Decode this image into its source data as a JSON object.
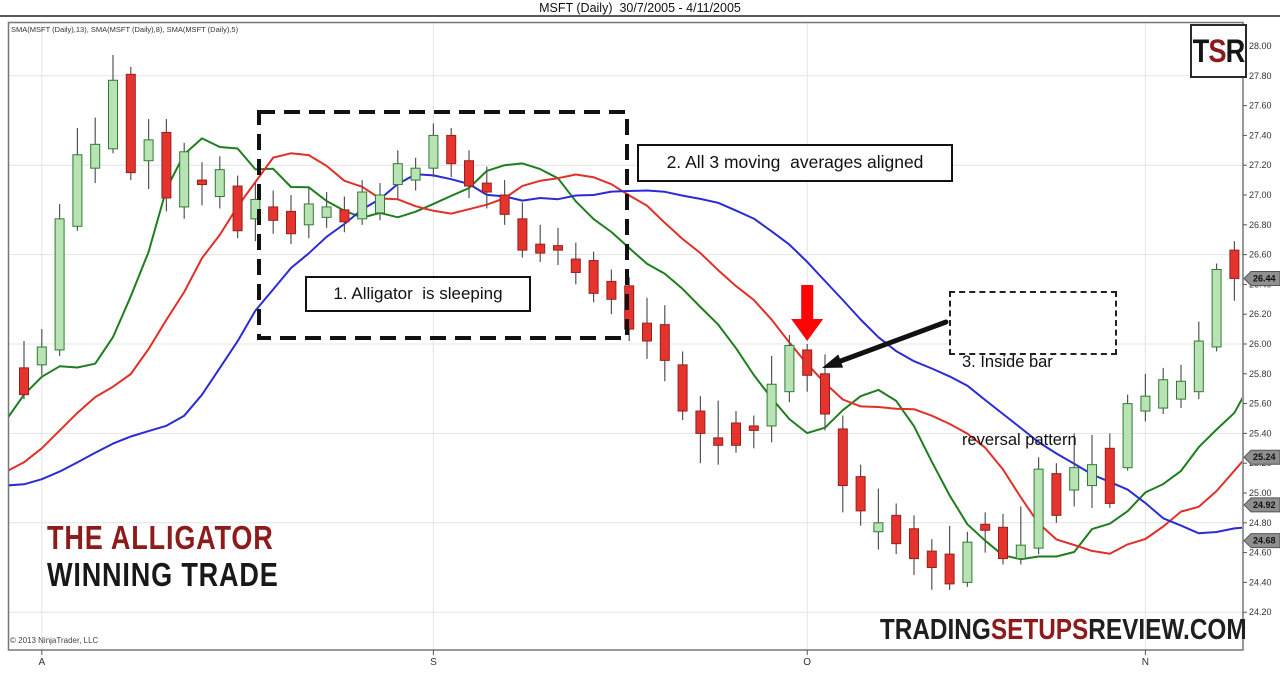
{
  "title": "MSFT (Daily)  30/7/2005 - 4/11/2005",
  "indicator_label": "SMA(MSFT (Daily),13), SMA(MSFT (Daily),8), SMA(MSFT (Daily),5)",
  "copyright": "© 2013 NinjaTrader, LLC",
  "branding": {
    "line1": "THE ALLIGATOR",
    "line2": "WINNING TRADE"
  },
  "watermark": {
    "part1": "TRADING",
    "part2": "SETUPS",
    "part3": "REVIEW.COM"
  },
  "logo": {
    "t": "T",
    "s": "S",
    "r": "R"
  },
  "annotations": {
    "sleeping": "1. Alligator  is sleeping",
    "aligned": "2. All 3 moving  averages aligned",
    "inside_line1": "3. Inside bar",
    "inside_line2": "reversal pattern"
  },
  "price_tags": [
    {
      "label": "26.44",
      "price": 26.44
    },
    {
      "label": "25.24",
      "price": 25.24
    },
    {
      "label": "24.92",
      "price": 24.92
    },
    {
      "label": "24.68",
      "price": 24.68
    }
  ],
  "colors": {
    "up_fill": "#b9e3b4",
    "up_border": "#2e7d32",
    "down_fill": "#e5342e",
    "down_border": "#99201c",
    "wick": "#555555",
    "sma5": "#1e7e1e",
    "sma8": "#e03028",
    "sma13": "#2b2bd6",
    "grid": "#e4e4e4",
    "frame": "#777777",
    "axis_text": "#333333",
    "tag_bg": "#8f8f8f",
    "tag_border": "#555555",
    "tag_text": "#111111",
    "arrow_red": "#fb0505",
    "arrow_black": "#111111",
    "accent_red": "#8e1b1b"
  },
  "chart_data": {
    "type": "candlestick",
    "symbol": "MSFT",
    "timeframe": "Daily",
    "date_range": "30/7/2005 - 4/11/2005",
    "title": "MSFT (Daily)  30/7/2005 - 4/11/2005",
    "ylim": [
      23.95,
      28.16
    ],
    "grid": true,
    "y_axis_ticks": [
      "28.00",
      "27.80",
      "27.60",
      "27.40",
      "27.20",
      "27.00",
      "26.80",
      "26.60",
      "26.40",
      "26.20",
      "26.00",
      "25.80",
      "25.60",
      "25.40",
      "25.20",
      "25.00",
      "24.80",
      "24.60",
      "24.40",
      "24.20"
    ],
    "x_axis_ticks": [
      {
        "label": "A",
        "index": 1
      },
      {
        "label": "S",
        "index": 23
      },
      {
        "label": "O",
        "index": 44
      },
      {
        "label": "N",
        "index": 63
      }
    ],
    "last_price": 26.44,
    "inside_bar_index": 44,
    "sleeping_box_bar_range": [
      13,
      33
    ],
    "candles_ohlc": [
      [
        25.84,
        26.02,
        25.63,
        25.66
      ],
      [
        25.86,
        26.1,
        25.79,
        25.98
      ],
      [
        25.96,
        26.94,
        25.92,
        26.84
      ],
      [
        26.79,
        27.45,
        26.76,
        27.27
      ],
      [
        27.18,
        27.52,
        27.08,
        27.34
      ],
      [
        27.31,
        27.94,
        27.28,
        27.77
      ],
      [
        27.81,
        27.86,
        27.1,
        27.15
      ],
      [
        27.23,
        27.51,
        27.04,
        27.37
      ],
      [
        27.42,
        27.51,
        26.89,
        26.98
      ],
      [
        26.92,
        27.35,
        26.84,
        27.29
      ],
      [
        27.1,
        27.22,
        26.93,
        27.07
      ],
      [
        26.99,
        27.26,
        26.91,
        27.17
      ],
      [
        27.06,
        27.13,
        26.71,
        26.76
      ],
      [
        26.84,
        27.08,
        26.69,
        26.97
      ],
      [
        26.92,
        27.03,
        26.74,
        26.83
      ],
      [
        26.89,
        27.0,
        26.67,
        26.74
      ],
      [
        26.8,
        27.05,
        26.71,
        26.94
      ],
      [
        26.85,
        27.02,
        26.78,
        26.92
      ],
      [
        26.9,
        26.99,
        26.75,
        26.82
      ],
      [
        26.84,
        27.1,
        26.8,
        27.02
      ],
      [
        26.88,
        27.08,
        26.83,
        27.0
      ],
      [
        27.07,
        27.3,
        26.97,
        27.21
      ],
      [
        27.1,
        27.25,
        27.03,
        27.18
      ],
      [
        27.18,
        27.48,
        27.12,
        27.4
      ],
      [
        27.4,
        27.45,
        27.12,
        27.21
      ],
      [
        27.23,
        27.3,
        26.98,
        27.06
      ],
      [
        27.08,
        27.19,
        26.91,
        27.02
      ],
      [
        27.0,
        27.1,
        26.8,
        26.87
      ],
      [
        26.84,
        26.95,
        26.58,
        26.63
      ],
      [
        26.67,
        26.8,
        26.55,
        26.61
      ],
      [
        26.66,
        26.78,
        26.53,
        26.63
      ],
      [
        26.57,
        26.68,
        26.4,
        26.48
      ],
      [
        26.56,
        26.62,
        26.28,
        26.34
      ],
      [
        26.42,
        26.5,
        26.2,
        26.3
      ],
      [
        26.39,
        26.45,
        26.02,
        26.1
      ],
      [
        26.14,
        26.31,
        25.9,
        26.02
      ],
      [
        26.13,
        26.26,
        25.75,
        25.89
      ],
      [
        25.86,
        25.95,
        25.49,
        25.55
      ],
      [
        25.55,
        25.65,
        25.2,
        25.4
      ],
      [
        25.37,
        25.62,
        25.19,
        25.32
      ],
      [
        25.47,
        25.55,
        25.27,
        25.32
      ],
      [
        25.45,
        25.52,
        25.3,
        25.42
      ],
      [
        25.45,
        25.92,
        25.34,
        25.73
      ],
      [
        25.68,
        26.06,
        25.61,
        25.99
      ],
      [
        25.96,
        26.0,
        25.68,
        25.79
      ],
      [
        25.8,
        25.93,
        25.42,
        25.53
      ],
      [
        25.43,
        25.52,
        24.87,
        25.05
      ],
      [
        25.11,
        25.19,
        24.78,
        24.88
      ],
      [
        24.74,
        25.03,
        24.62,
        24.8
      ],
      [
        24.85,
        24.93,
        24.59,
        24.66
      ],
      [
        24.76,
        24.85,
        24.45,
        24.56
      ],
      [
        24.61,
        24.69,
        24.35,
        24.5
      ],
      [
        24.59,
        24.78,
        24.35,
        24.39
      ],
      [
        24.4,
        24.74,
        24.37,
        24.67
      ],
      [
        24.79,
        24.87,
        24.6,
        24.75
      ],
      [
        24.77,
        24.86,
        24.52,
        24.56
      ],
      [
        24.56,
        24.91,
        24.52,
        24.65
      ],
      [
        24.63,
        25.24,
        24.59,
        25.16
      ],
      [
        25.13,
        25.2,
        24.8,
        24.85
      ],
      [
        25.02,
        25.4,
        24.91,
        25.17
      ],
      [
        25.05,
        25.39,
        24.9,
        25.19
      ],
      [
        25.3,
        25.4,
        24.9,
        24.93
      ],
      [
        25.17,
        25.66,
        25.15,
        25.6
      ],
      [
        25.55,
        25.8,
        25.48,
        25.65
      ],
      [
        25.57,
        25.84,
        25.53,
        25.76
      ],
      [
        25.63,
        25.86,
        25.57,
        25.75
      ],
      [
        25.68,
        26.15,
        25.63,
        26.02
      ],
      [
        25.98,
        26.54,
        25.95,
        26.5
      ],
      [
        26.63,
        26.69,
        26.29,
        26.44
      ]
    ],
    "sma_series": [
      {
        "name": "SMA(MSFT (Daily),5)",
        "period": 5,
        "displacement": 3,
        "color_key": "sma5"
      },
      {
        "name": "SMA(MSFT (Daily),8)",
        "period": 8,
        "displacement": 5,
        "color_key": "sma8"
      },
      {
        "name": "SMA(MSFT (Daily),13)",
        "period": 13,
        "displacement": 8,
        "color_key": "sma13"
      }
    ],
    "sma_seed_closes": [
      25.2,
      25.1,
      25.0,
      24.95,
      25.0,
      25.1,
      25.3,
      25.5,
      25.7,
      25.85,
      25.95,
      25.9,
      25.85
    ]
  }
}
